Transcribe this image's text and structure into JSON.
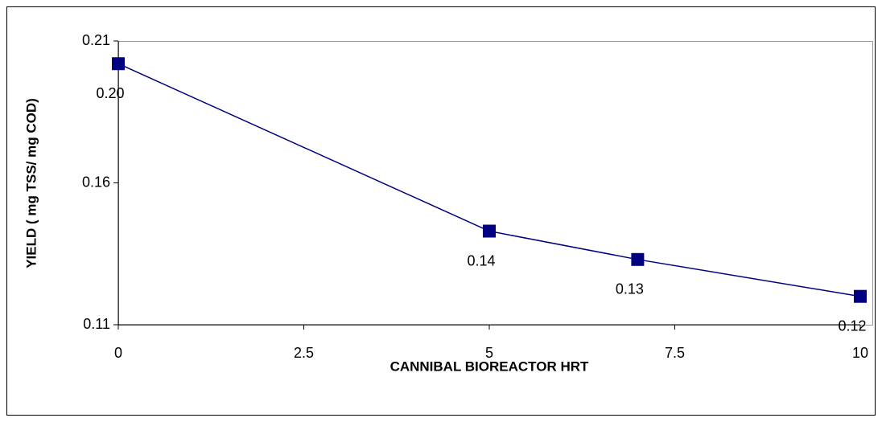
{
  "chart_data": {
    "type": "line",
    "x_label": "CANNIBAL BIOREACTOR HRT",
    "y_label": "YIELD ( mg TSS/ mg COD)",
    "x": [
      0,
      5,
      7,
      10
    ],
    "series": [
      {
        "color": "#000080",
        "values": [
          0.202,
          0.143,
          0.133,
          0.12
        ],
        "value_labels": [
          "0.20",
          "0.14",
          "0.13",
          "0.12"
        ]
      }
    ],
    "xlim": [
      0,
      10
    ],
    "xticks": [
      0,
      2.5,
      5,
      7.5,
      10
    ],
    "ylim": [
      0.11,
      0.21
    ],
    "yticks": [
      0.11,
      0.16,
      0.21
    ],
    "grid": false
  }
}
